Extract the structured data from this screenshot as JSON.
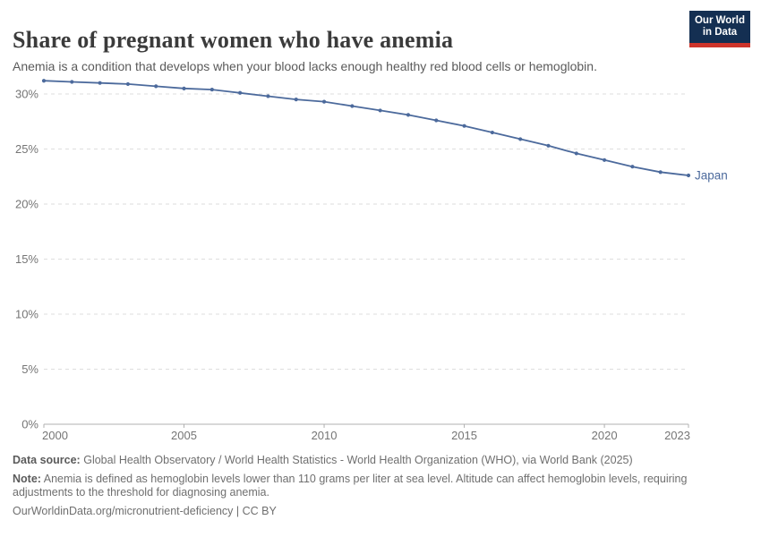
{
  "header": {
    "title": "Share of pregnant women who have anemia",
    "subtitle": "Anemia is a condition that develops when your blood lacks enough healthy red blood cells or hemoglobin.",
    "logo": {
      "line1": "Our World",
      "line2": "in Data",
      "bg_color": "#142F52",
      "stripe_color": "#CE342B"
    }
  },
  "chart_data": {
    "type": "line",
    "title": "Share of pregnant women who have anemia",
    "xlabel": "",
    "ylabel": "",
    "xlim": [
      2000,
      2023
    ],
    "ylim": [
      0,
      31.6
    ],
    "grid": "horizontal-dashed",
    "legend_position": "end-of-line-label",
    "x_ticks": [
      2000,
      2005,
      2010,
      2015,
      2020,
      2023
    ],
    "y_ticks": [
      {
        "value": 0,
        "label": "0%"
      },
      {
        "value": 5,
        "label": "5%"
      },
      {
        "value": 10,
        "label": "10%"
      },
      {
        "value": 15,
        "label": "15%"
      },
      {
        "value": 20,
        "label": "20%"
      },
      {
        "value": 25,
        "label": "25%"
      },
      {
        "value": 30,
        "label": "30%"
      }
    ],
    "series": [
      {
        "name": "Japan",
        "color": "#4C6A9C",
        "x": [
          2000,
          2001,
          2002,
          2003,
          2004,
          2005,
          2006,
          2007,
          2008,
          2009,
          2010,
          2011,
          2012,
          2013,
          2014,
          2015,
          2016,
          2017,
          2018,
          2019,
          2020,
          2021,
          2022,
          2023
        ],
        "values": [
          31.2,
          31.1,
          31.0,
          30.9,
          30.7,
          30.5,
          30.4,
          30.1,
          29.8,
          29.5,
          29.3,
          28.9,
          28.5,
          28.1,
          27.6,
          27.1,
          26.5,
          25.9,
          25.3,
          24.6,
          24.0,
          23.4,
          22.9,
          22.6
        ]
      }
    ],
    "style": {
      "grid_color": "#dedede",
      "axis_color": "#b0b0b0",
      "tick_label_color": "#757575"
    }
  },
  "footer": {
    "data_source_label": "Data source:",
    "data_source": "Global Health Observatory / World Health Statistics - World Health Organization (WHO), via World Bank (2025)",
    "note_label": "Note:",
    "note": "Anemia is defined as hemoglobin levels lower than 110 grams per liter at sea level. Altitude can affect hemoglobin levels, requiring adjustments to the threshold for diagnosing anemia.",
    "license": "OurWorldinData.org/micronutrient-deficiency | CC BY"
  }
}
